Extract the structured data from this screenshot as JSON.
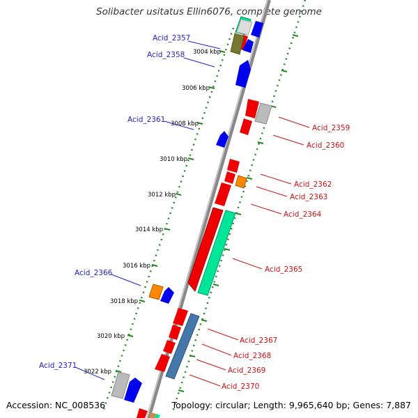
{
  "title": "Solibacter usitatus Ellin6076, complete genome",
  "accession": "Accession: NC_008536",
  "summary": "Topology: circular; Length: 9,965,640 bp; Genes: 7,887",
  "colors": {
    "forward_gene": "#ee0000",
    "reverse_gene": "#0000ee",
    "rna_gene": "#00e699",
    "other_gene": "#999999",
    "pseudo_gene": "#ff8800",
    "ruler": "#228822",
    "backbone": "#999999"
  },
  "ticks": [
    "3004 kbp",
    "3006 kbp",
    "3008 kbp",
    "3010 kbp",
    "3012 kbp",
    "3014 kbp",
    "3016 kbp",
    "3018 kbp",
    "3020 kbp",
    "3022 kbp"
  ],
  "left_labels": [
    "Acid_2357",
    "Acid_2358",
    "Acid_2361",
    "Acid_2366",
    "Acid_2371"
  ],
  "right_labels": [
    "Acid_2359",
    "Acid_2360",
    "Acid_2362",
    "Acid_2363",
    "Acid_2364",
    "Acid_2365",
    "Acid_2367",
    "Acid_2368",
    "Acid_2369",
    "Acid_2370"
  ]
}
